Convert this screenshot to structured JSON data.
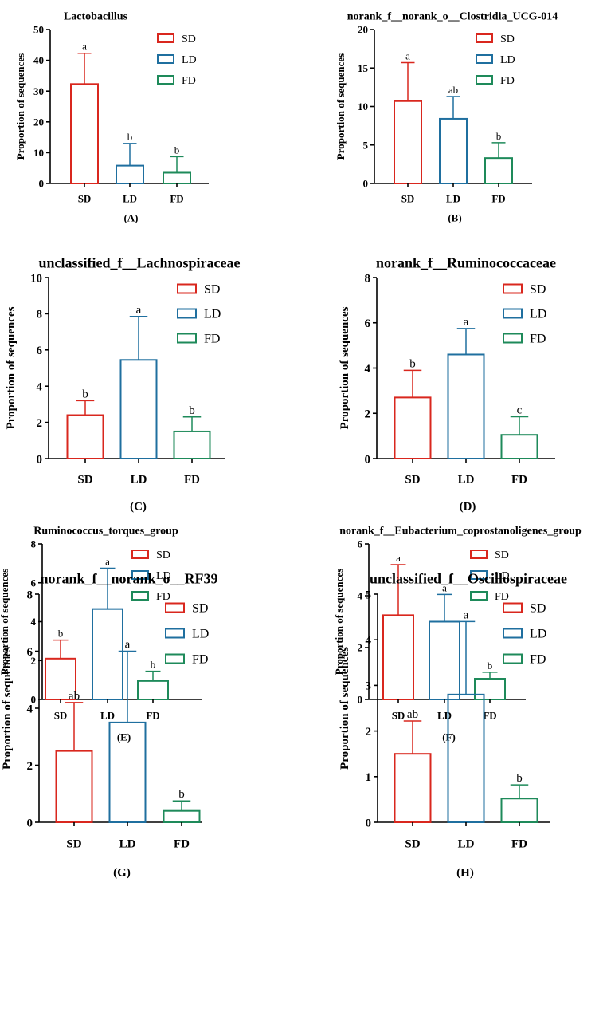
{
  "colors": {
    "SD": "#d9271e",
    "LD": "#1f6f9f",
    "FD": "#1e8a5a"
  },
  "chart_data": [
    {
      "type": "bar",
      "title": "Lactobacillus",
      "panel": "(A)",
      "ylabel": "Proportion of sequences",
      "ylim": [
        0,
        50
      ],
      "yticks": [
        0,
        10,
        20,
        30,
        40,
        50
      ],
      "categories": [
        "SD",
        "LD",
        "FD"
      ],
      "values": [
        32.3,
        5.8,
        3.5
      ],
      "errors": [
        10.0,
        7.2,
        5.2
      ],
      "letters": [
        "a",
        "b",
        "b"
      ],
      "legend": [
        "SD",
        "LD",
        "FD"
      ],
      "legend_position": "top-right"
    },
    {
      "type": "bar",
      "title": "norank_f__norank_o__Clostridia_UCG-014",
      "panel": "(B)",
      "ylabel": "Proportion of sequences",
      "ylim": [
        0,
        20
      ],
      "yticks": [
        0,
        5,
        10,
        15,
        20
      ],
      "categories": [
        "SD",
        "LD",
        "FD"
      ],
      "values": [
        10.7,
        8.4,
        3.3
      ],
      "errors": [
        5.0,
        2.9,
        2.0
      ],
      "letters": [
        "a",
        "ab",
        "b"
      ],
      "legend": [
        "SD",
        "LD",
        "FD"
      ],
      "legend_position": "top-right"
    },
    {
      "type": "bar",
      "title": "unclassified_f__Lachnospiraceae",
      "panel": "(C)",
      "ylabel": "Proportion of sequences",
      "ylim": [
        0,
        10
      ],
      "yticks": [
        0,
        2,
        4,
        6,
        8,
        10
      ],
      "categories": [
        "SD",
        "LD",
        "FD"
      ],
      "values": [
        2.4,
        5.45,
        1.5
      ],
      "errors": [
        0.8,
        2.4,
        0.8
      ],
      "letters": [
        "b",
        "a",
        "b"
      ],
      "legend": [
        "SD",
        "LD",
        "FD"
      ],
      "legend_position": "top-right"
    },
    {
      "type": "bar",
      "title": "norank_f__Ruminococcaceae",
      "panel": "(D)",
      "ylabel": "Proportion of sequences",
      "ylim": [
        0,
        8
      ],
      "yticks": [
        0,
        2,
        4,
        6,
        8
      ],
      "categories": [
        "SD",
        "LD",
        "FD"
      ],
      "values": [
        2.7,
        4.6,
        1.05
      ],
      "errors": [
        1.2,
        1.15,
        0.8
      ],
      "letters": [
        "b",
        "a",
        "c"
      ],
      "legend": [
        "SD",
        "LD",
        "FD"
      ],
      "legend_position": "top-right"
    },
    {
      "type": "bar",
      "title": "Ruminococcus_torques_group",
      "panel": "(E)",
      "ylabel": "Proportion of sequences",
      "ylim": [
        0,
        8
      ],
      "yticks": [
        0,
        2,
        4,
        6,
        8
      ],
      "categories": [
        "SD",
        "LD",
        "FD"
      ],
      "values": [
        2.1,
        4.65,
        0.95
      ],
      "errors": [
        0.95,
        2.1,
        0.5
      ],
      "letters": [
        "b",
        "a",
        "b"
      ],
      "legend": [
        "SD",
        "LD",
        "FD"
      ],
      "legend_position": "top-right"
    },
    {
      "type": "bar",
      "title": "norank_f__Eubacterium_coprostanoligenes_group",
      "panel": "(F)",
      "ylabel": "Proportion of sequences",
      "ylim": [
        0,
        6
      ],
      "yticks": [
        0,
        2,
        4,
        6
      ],
      "categories": [
        "SD",
        "LD",
        "FD"
      ],
      "values": [
        3.25,
        3.0,
        0.8
      ],
      "errors": [
        1.95,
        1.05,
        0.25
      ],
      "letters": [
        "a",
        "a",
        "b"
      ],
      "legend": [
        "SD",
        "LD",
        "FD"
      ],
      "legend_position": "top-right"
    },
    {
      "type": "bar",
      "title": "norank_f__norank_o__RF39",
      "panel": "(G)",
      "ylabel": "Proportion of sequences",
      "ylim": [
        0,
        8
      ],
      "yticks": [
        0,
        2,
        4,
        6,
        8
      ],
      "categories": [
        "SD",
        "LD",
        "FD"
      ],
      "values": [
        2.5,
        3.5,
        0.4
      ],
      "errors": [
        1.7,
        2.5,
        0.35
      ],
      "letters": [
        "ab",
        "a",
        "b"
      ],
      "legend": [
        "SD",
        "LD",
        "FD"
      ],
      "legend_position": "top-right"
    },
    {
      "type": "bar",
      "title": "unclassified_f__Oscillospiraceae",
      "panel": "(H)",
      "ylabel": "Proportion of sequences",
      "ylim": [
        0,
        5
      ],
      "yticks": [
        0,
        1,
        2,
        3,
        4,
        5
      ],
      "categories": [
        "SD",
        "LD",
        "FD"
      ],
      "values": [
        1.5,
        2.8,
        0.52
      ],
      "errors": [
        0.72,
        1.6,
        0.3
      ],
      "letters": [
        "ab",
        "a",
        "b"
      ],
      "legend": [
        "SD",
        "LD",
        "FD"
      ],
      "legend_position": "top-right"
    }
  ]
}
